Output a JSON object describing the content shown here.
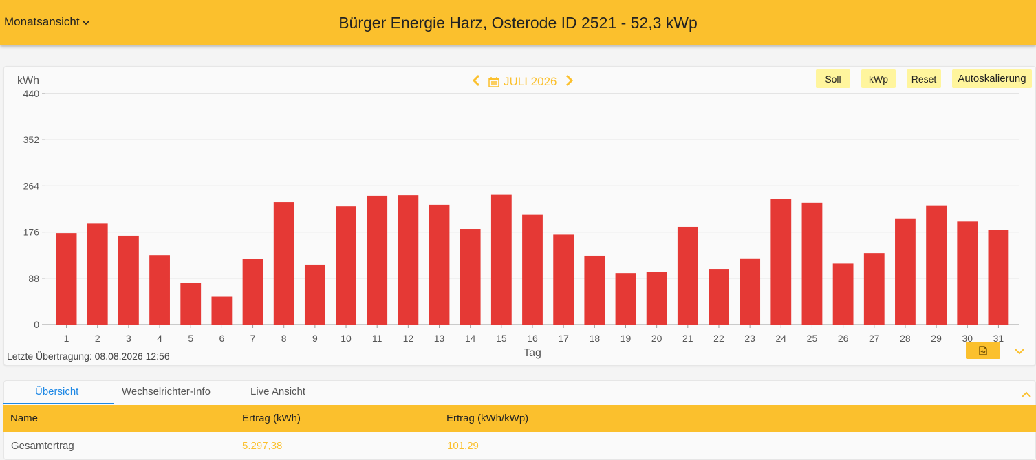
{
  "header": {
    "view_label": "Monatsansicht",
    "title": "Bürger Energie Harz, Osterode ID 2521 - 52,3 kWp"
  },
  "nav": {
    "period_label": "JULI 2026"
  },
  "buttons": {
    "soll": "Soll",
    "kwp": "kWp",
    "reset": "Reset",
    "autoscale": "Autoskalierung"
  },
  "colors": {
    "accent": "#fbc02d",
    "bar": "#e53935",
    "tab_active": "#1e88e5"
  },
  "chart_data": {
    "type": "bar",
    "ylabel": "kWh",
    "xlabel": "Tag",
    "ylim": [
      0,
      440
    ],
    "yticks": [
      0,
      88,
      176,
      264,
      352,
      440
    ],
    "grid": true,
    "categories": [
      "1",
      "2",
      "3",
      "4",
      "5",
      "6",
      "7",
      "8",
      "9",
      "10",
      "11",
      "12",
      "13",
      "14",
      "15",
      "16",
      "17",
      "18",
      "19",
      "20",
      "21",
      "22",
      "23",
      "24",
      "25",
      "26",
      "27",
      "28",
      "29",
      "30",
      "31"
    ],
    "values": [
      174,
      192,
      169,
      132,
      79,
      53,
      125,
      233,
      114,
      225,
      245,
      246,
      228,
      182,
      248,
      210,
      171,
      131,
      98,
      100,
      186,
      106,
      126,
      239,
      232,
      116,
      136,
      202,
      227,
      196,
      180
    ]
  },
  "status": {
    "last_transmission": "Letzte Übertragung: 08.08.2026 12:56"
  },
  "tabs": [
    {
      "label": "Übersicht"
    },
    {
      "label": "Wechselrichter-Info"
    },
    {
      "label": "Live Ansicht"
    }
  ],
  "table": {
    "headers": [
      "Name",
      "Ertrag (kWh)",
      "Ertrag (kWh/kWp)"
    ],
    "rows": [
      {
        "name": "Gesamtertrag",
        "kwh": "5.297,38",
        "kwh_kwp": "101,29"
      }
    ]
  }
}
